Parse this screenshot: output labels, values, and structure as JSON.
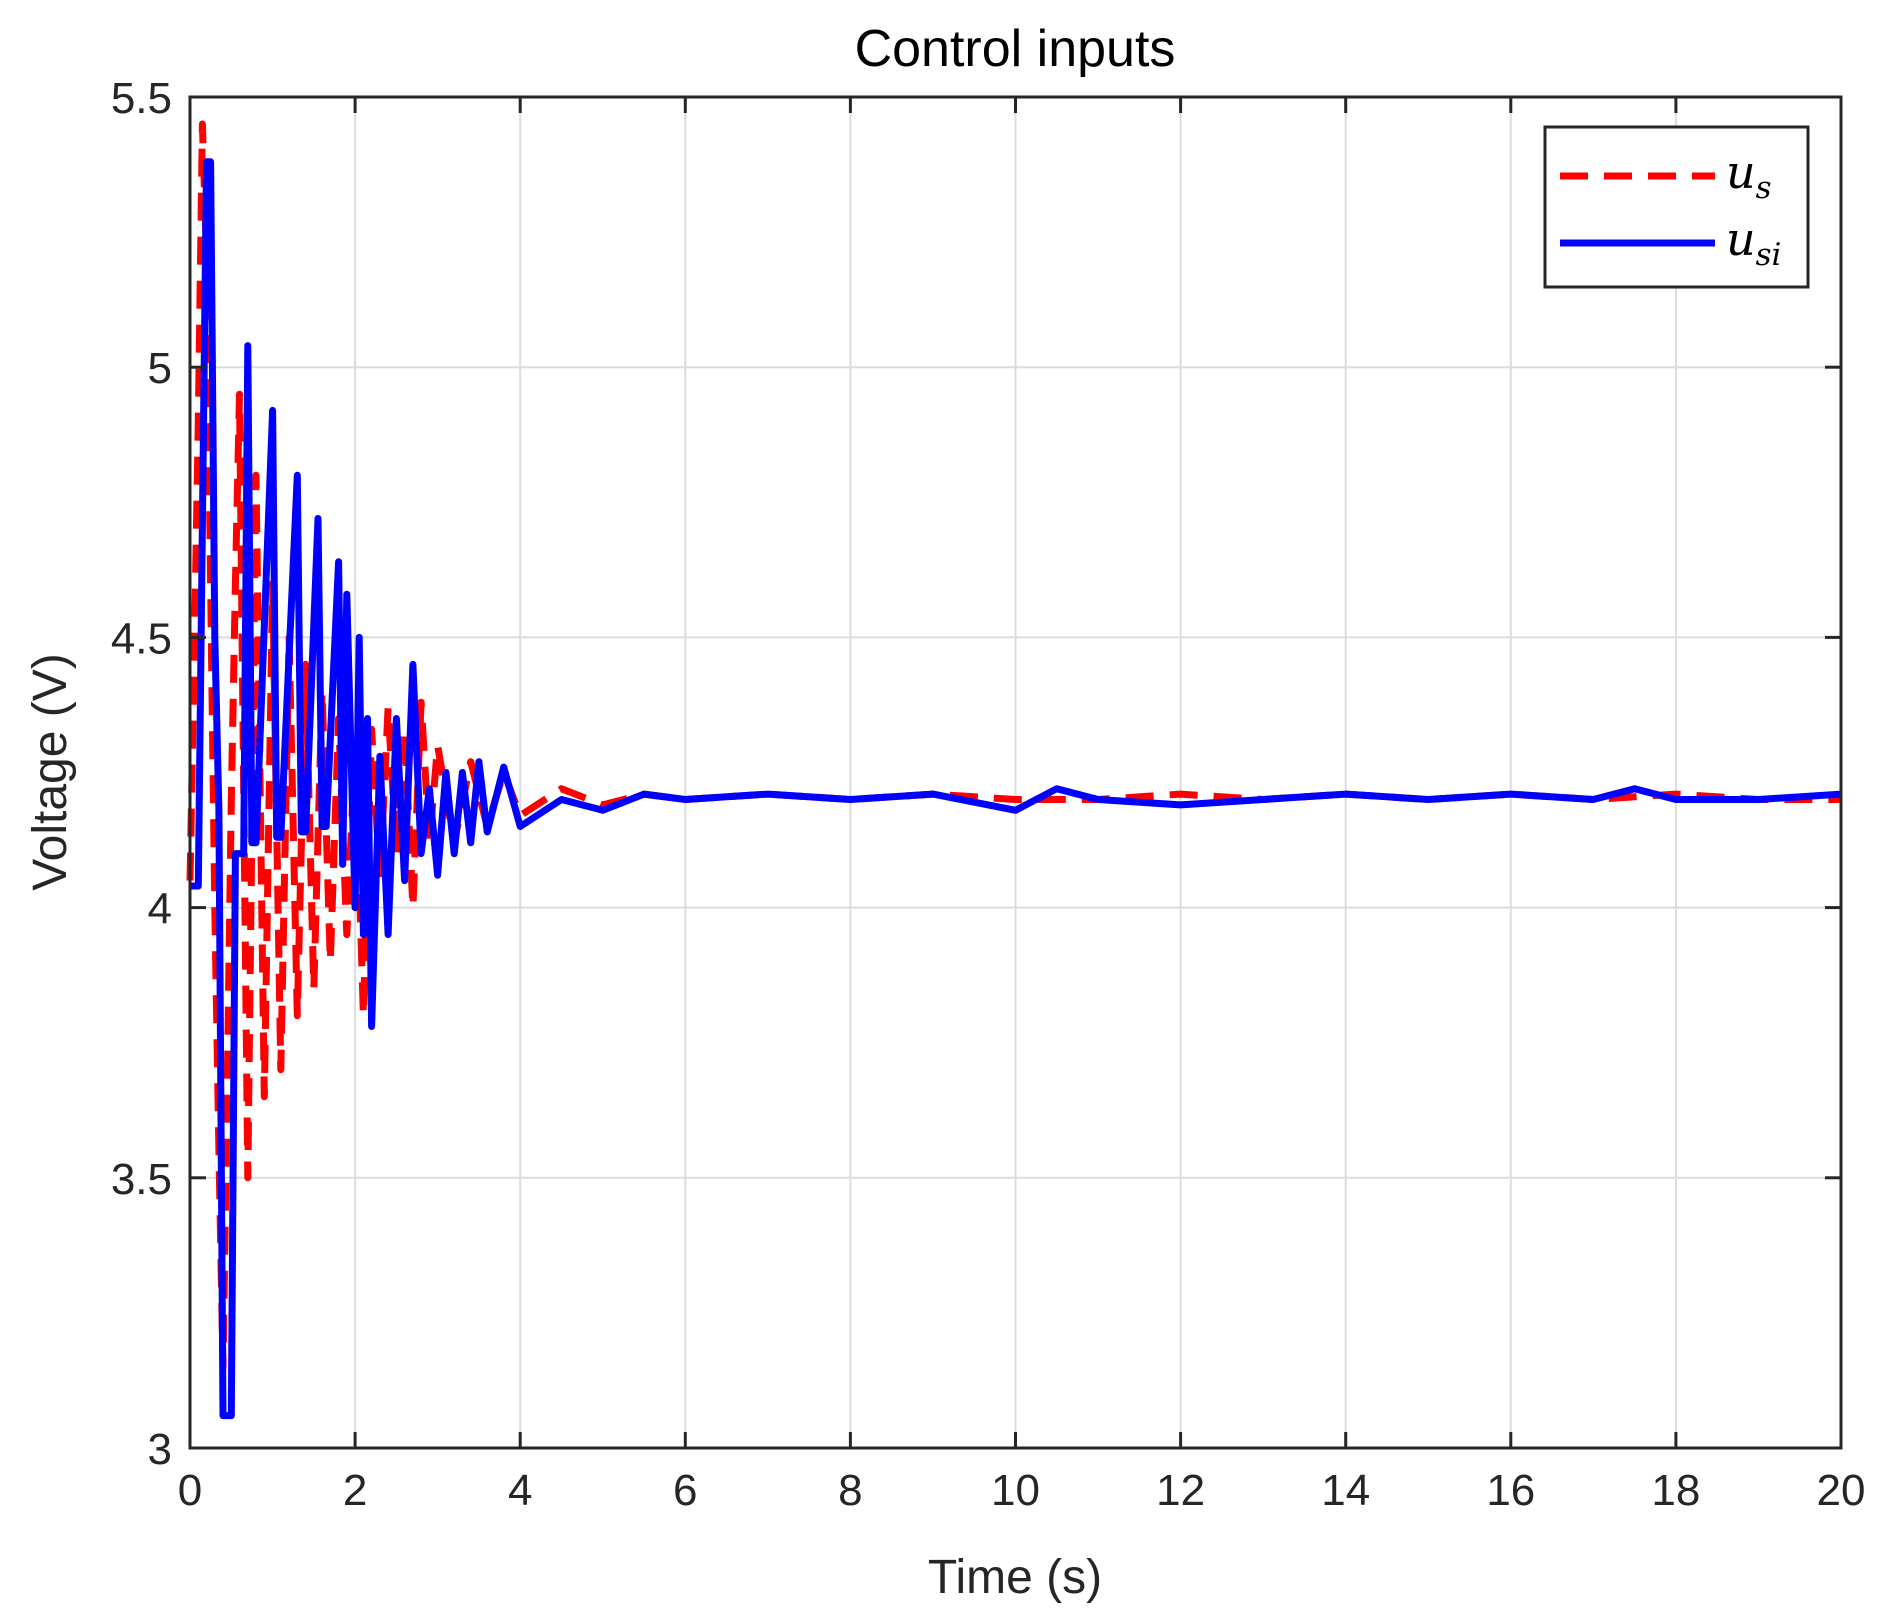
{
  "chart_data": {
    "type": "line",
    "title": "Control inputs",
    "xlabel": "Time (s)",
    "ylabel": "Voltage (V)",
    "xlim": [
      0,
      20
    ],
    "ylim": [
      3,
      5.5
    ],
    "xticks": [
      "0",
      "2",
      "4",
      "6",
      "8",
      "10",
      "12",
      "14",
      "16",
      "18",
      "20"
    ],
    "yticks": [
      "3",
      "3.5",
      "4",
      "4.5",
      "5",
      "5.5"
    ],
    "grid": true,
    "legend_position": "top-right",
    "series": [
      {
        "name": "u_s",
        "legend_main": "u",
        "legend_sub": "s",
        "color": "#ff0000",
        "style": "dashed",
        "x": [
          0,
          0.05,
          0.1,
          0.15,
          0.2,
          0.25,
          0.3,
          0.35,
          0.4,
          0.45,
          0.5,
          0.55,
          0.6,
          0.7,
          0.8,
          0.9,
          1.0,
          1.1,
          1.2,
          1.3,
          1.4,
          1.5,
          1.6,
          1.7,
          1.8,
          1.9,
          2.0,
          2.1,
          2.2,
          2.3,
          2.4,
          2.5,
          2.6,
          2.7,
          2.8,
          2.9,
          3.0,
          3.2,
          3.4,
          3.6,
          3.8,
          4.0,
          4.5,
          5.0,
          5.5,
          6,
          7,
          8,
          9,
          10,
          11,
          12,
          13,
          14,
          15,
          16,
          17,
          18,
          19,
          20
        ],
        "y": [
          4.05,
          4.45,
          4.9,
          5.45,
          5.2,
          4.6,
          4.0,
          3.55,
          3.15,
          3.65,
          4.2,
          4.6,
          4.95,
          3.5,
          4.8,
          3.65,
          4.6,
          3.7,
          4.5,
          3.8,
          4.45,
          3.85,
          4.4,
          3.9,
          4.35,
          3.95,
          4.3,
          3.8,
          4.33,
          4.05,
          4.37,
          4.1,
          4.33,
          4.0,
          4.38,
          4.12,
          4.3,
          4.12,
          4.27,
          4.15,
          4.25,
          4.17,
          4.22,
          4.19,
          4.21,
          4.2,
          4.21,
          4.2,
          4.21,
          4.2,
          4.2,
          4.21,
          4.2,
          4.21,
          4.2,
          4.21,
          4.2,
          4.21,
          4.2,
          4.2
        ]
      },
      {
        "name": "u_si",
        "legend_main": "u",
        "legend_sub": "si",
        "color": "#0000ff",
        "style": "solid",
        "x": [
          0,
          0.05,
          0.1,
          0.2,
          0.25,
          0.3,
          0.35,
          0.4,
          0.45,
          0.5,
          0.55,
          0.6,
          0.65,
          0.7,
          0.75,
          0.8,
          1.0,
          1.05,
          1.1,
          1.3,
          1.35,
          1.4,
          1.55,
          1.6,
          1.65,
          1.8,
          1.85,
          1.9,
          2.0,
          2.05,
          2.1,
          2.15,
          2.2,
          2.3,
          2.4,
          2.5,
          2.6,
          2.7,
          2.8,
          2.9,
          3.0,
          3.1,
          3.2,
          3.3,
          3.4,
          3.5,
          3.6,
          3.8,
          4.0,
          4.5,
          5.0,
          5.5,
          6,
          7,
          8,
          9,
          10,
          10.5,
          11,
          12,
          13,
          14,
          15,
          16,
          17,
          17.5,
          18,
          19,
          20
        ],
        "y": [
          4.04,
          4.04,
          4.04,
          5.38,
          5.38,
          4.5,
          4.18,
          3.06,
          3.06,
          3.06,
          4.1,
          4.1,
          4.1,
          5.04,
          4.12,
          4.12,
          4.92,
          4.13,
          4.13,
          4.8,
          4.14,
          4.14,
          4.72,
          4.15,
          4.15,
          4.64,
          4.08,
          4.58,
          4.0,
          4.5,
          3.95,
          4.35,
          3.78,
          4.28,
          3.95,
          4.35,
          4.05,
          4.45,
          4.1,
          4.22,
          4.06,
          4.25,
          4.1,
          4.25,
          4.12,
          4.27,
          4.14,
          4.26,
          4.15,
          4.2,
          4.18,
          4.21,
          4.2,
          4.21,
          4.2,
          4.21,
          4.18,
          4.22,
          4.2,
          4.19,
          4.2,
          4.21,
          4.2,
          4.21,
          4.2,
          4.22,
          4.2,
          4.2,
          4.21
        ]
      }
    ]
  }
}
